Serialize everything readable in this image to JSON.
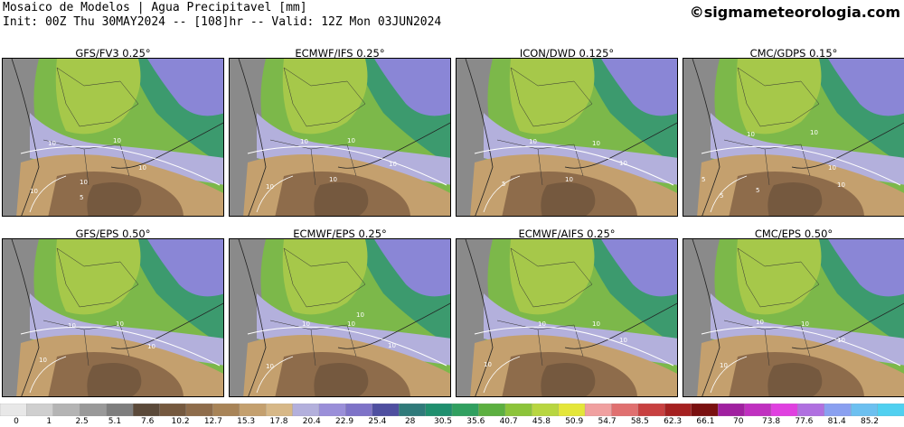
{
  "header": {
    "title": "Mosaico de Modelos | Agua Precipitavel [mm]",
    "init_line": "Init: 00Z Thu 30MAY2024 -- [108]hr -- Valid: 12Z Mon 03JUN2024",
    "brand": "©sigmameteorologia.com"
  },
  "panels": [
    {
      "title": "GFS/FV3 0.25°",
      "contour_labels": [
        "10",
        "10",
        "10",
        "10",
        "10",
        "5"
      ]
    },
    {
      "title": "ECMWF/IFS 0.25°",
      "contour_labels": [
        "10",
        "10",
        "10",
        "10",
        "10"
      ]
    },
    {
      "title": "ICON/DWD 0.125°",
      "contour_labels": [
        "10",
        "10",
        "10",
        "10",
        "5"
      ]
    },
    {
      "title": "CMC/GDPS 0.15°",
      "contour_labels": [
        "10",
        "10",
        "10",
        "5",
        "5",
        "5",
        "10"
      ]
    },
    {
      "title": "GFS/EPS 0.50°",
      "contour_labels": [
        "10",
        "10",
        "10",
        "10"
      ]
    },
    {
      "title": "ECMWF/EPS 0.25°",
      "contour_labels": [
        "10",
        "10",
        "10",
        "10",
        "10"
      ]
    },
    {
      "title": "ECMWF/AIFS 0.25°",
      "contour_labels": [
        "10",
        "10",
        "10",
        "10"
      ]
    },
    {
      "title": "CMC/EPS 0.50°",
      "contour_labels": [
        "10",
        "10",
        "10",
        "10"
      ]
    }
  ],
  "colorbar": {
    "labels": [
      "0",
      "1",
      "2.5",
      "5.1",
      "7.6",
      "10.2",
      "12.7",
      "15.3",
      "17.8",
      "20.4",
      "22.9",
      "25.4",
      "28",
      "30.5",
      "35.6",
      "40.7",
      "45.8",
      "50.9",
      "54.7",
      "58.5",
      "62.3",
      "66.1",
      "70",
      "73.8",
      "77.6",
      "81.4",
      "85.2"
    ],
    "colors": [
      "#e8e8e8",
      "#cfcfcf",
      "#b4b4b4",
      "#999999",
      "#7e7e7e",
      "#5b4a3a",
      "#75593f",
      "#8e6c4b",
      "#a88458",
      "#c4a06e",
      "#d7b887",
      "#b3b0dc",
      "#9a8fd9",
      "#7e73c8",
      "#4f4fa0",
      "#2f7a7a",
      "#1f8f6e",
      "#30a060",
      "#5cb040",
      "#8cc43a",
      "#b8d640",
      "#e4e63a",
      "#f0a0a0",
      "#e07070",
      "#c84040",
      "#a52020",
      "#7a1010",
      "#a020a0",
      "#c030c0",
      "#e040e0",
      "#b070e0",
      "#8aa0f0",
      "#6cc0f0",
      "#50d0f0"
    ]
  }
}
